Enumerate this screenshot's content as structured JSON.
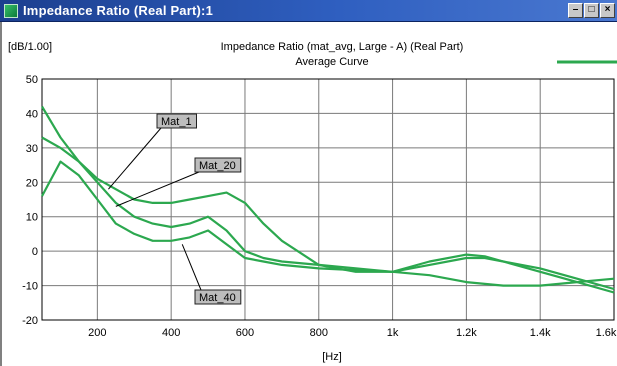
{
  "window": {
    "title": "Impedance Ratio (Real Part):1",
    "buttons": [
      "minimize",
      "maximize",
      "close"
    ]
  },
  "colors": {
    "titlebar": "#2f5fc0",
    "curve": "#2ca84f",
    "grid": "#7a7a7a"
  },
  "chart_data": {
    "type": "line",
    "title": "Impedance Ratio (mat_avg, Large - A) (Real Part)",
    "subtitle": "Average Curve",
    "unit_label": "[dB/1.00]",
    "xlabel": "[Hz]",
    "xlim": [
      50,
      1600
    ],
    "ylim": [
      -20,
      50
    ],
    "x_tick_values": [
      200,
      400,
      600,
      800,
      1000,
      1200,
      1400,
      1600
    ],
    "x_tick_labels": [
      "200",
      "400",
      "600",
      "800",
      "1k",
      "1.2k",
      "1.4k",
      "1.6k"
    ],
    "y_tick_values": [
      50,
      40,
      30,
      20,
      10,
      0,
      -10,
      -20
    ],
    "y_tick_labels": [
      "50",
      "40",
      "30",
      "20",
      "10",
      "0",
      "-10",
      "-20"
    ],
    "grid": true,
    "legend": {
      "position": "top-right",
      "label": ""
    },
    "series": [
      {
        "name": "Mat_1",
        "x": [
          50,
          100,
          150,
          200,
          250,
          300,
          350,
          400,
          450,
          500,
          550,
          600,
          650,
          700,
          800,
          900,
          1000,
          1100,
          1200,
          1250,
          1300,
          1400,
          1500,
          1600
        ],
        "y": [
          42,
          33,
          26,
          21,
          18,
          15,
          14,
          14,
          15,
          16,
          17,
          14,
          8,
          3,
          -4,
          -6,
          -6,
          -7,
          -9,
          -9.5,
          -10,
          -10,
          -9,
          -8
        ]
      },
      {
        "name": "Mat_20",
        "x": [
          50,
          100,
          150,
          200,
          250,
          300,
          350,
          400,
          450,
          500,
          550,
          600,
          650,
          700,
          800,
          900,
          1000,
          1100,
          1200,
          1250,
          1300,
          1400,
          1500,
          1600
        ],
        "y": [
          33,
          30,
          26,
          20,
          14,
          10,
          8,
          7,
          8,
          10,
          6,
          0,
          -2,
          -3,
          -4,
          -5,
          -6,
          -4,
          -2,
          -2,
          -3,
          -5,
          -8,
          -11
        ]
      },
      {
        "name": "Mat_40",
        "x": [
          50,
          100,
          150,
          200,
          250,
          300,
          350,
          400,
          450,
          500,
          550,
          600,
          650,
          700,
          800,
          900,
          1000,
          1100,
          1200,
          1250,
          1300,
          1400,
          1500,
          1600
        ],
        "y": [
          16,
          26,
          22,
          15,
          8,
          5,
          3,
          3,
          4,
          6,
          2,
          -2,
          -3,
          -4,
          -5,
          -5.5,
          -6,
          -3,
          -1,
          -1.5,
          -3,
          -6,
          -9,
          -12
        ]
      }
    ],
    "callouts": [
      {
        "label": "Mat_1",
        "target_x": 230,
        "target_y": 18
      },
      {
        "label": "Mat_20",
        "target_x": 250,
        "target_y": 13
      },
      {
        "label": "Mat_40",
        "target_x": 430,
        "target_y": 2
      }
    ]
  }
}
